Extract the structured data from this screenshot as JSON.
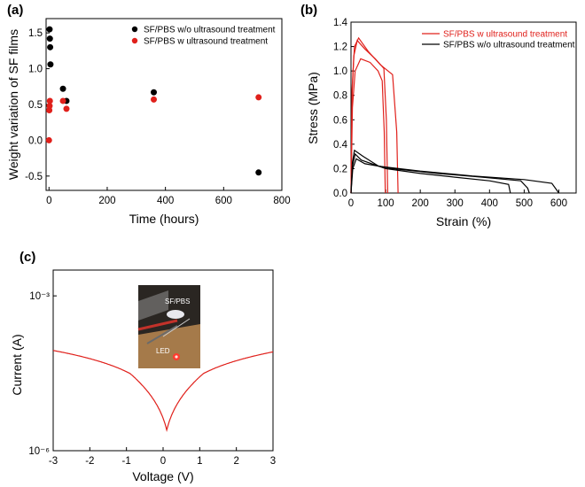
{
  "colors": {
    "red": "#e0201b",
    "black": "#000000",
    "inset_bg": "#2a2622",
    "inset_wood": "#a57a4a"
  },
  "chart_data": [
    {
      "id": "a",
      "panel_label": "(a)",
      "type": "scatter",
      "xlabel": "Time (hours)",
      "ylabel": "Weight variation of SF films",
      "xlim": [
        -10,
        800
      ],
      "ylim": [
        -0.7,
        1.7
      ],
      "xticks": [
        "0",
        "200",
        "400",
        "600",
        "800"
      ],
      "yticks": [
        "-0.5",
        "0.0",
        "0.5",
        "1.0",
        "1.5"
      ],
      "legend_position": "top-right",
      "series": [
        {
          "name": "SF/PBS w/o ultrasound treatment",
          "color": "#000000",
          "points": [
            [
              2,
              1.55
            ],
            [
              3,
              1.42
            ],
            [
              4,
              1.3
            ],
            [
              5,
              1.06
            ],
            [
              48,
              0.72
            ],
            [
              60,
              0.55
            ],
            [
              360,
              0.67
            ],
            [
              720,
              -0.45
            ]
          ]
        },
        {
          "name": "SF/PBS w ultrasound treatment",
          "color": "#e0201b",
          "points": [
            [
              0,
              0.0
            ],
            [
              1,
              0.42
            ],
            [
              2,
              0.48
            ],
            [
              3,
              0.55
            ],
            [
              48,
              0.55
            ],
            [
              60,
              0.44
            ],
            [
              360,
              0.57
            ],
            [
              720,
              0.6
            ]
          ]
        }
      ]
    },
    {
      "id": "b",
      "panel_label": "(b)",
      "type": "line",
      "xlabel": "Strain (%)",
      "ylabel": "Stress (MPa)",
      "xlim": [
        0,
        650
      ],
      "ylim": [
        0,
        1.4
      ],
      "xticks": [
        "0",
        "100",
        "200",
        "300",
        "400",
        "500",
        "600"
      ],
      "yticks": [
        "0.0",
        "0.2",
        "0.4",
        "0.6",
        "0.8",
        "1.0",
        "1.2",
        "1.4"
      ],
      "legend_position": "top-right",
      "legend": [
        {
          "name": "SF/PBS w ultrasound treatment",
          "color": "#e0201b"
        },
        {
          "name": "SF/PBS w/o ultrasound treatment",
          "color": "#000000"
        }
      ],
      "series": [
        {
          "name": "w ultrasound 1",
          "color": "#e0201b",
          "points": [
            [
              0,
              0
            ],
            [
              3,
              0.8
            ],
            [
              8,
              1.12
            ],
            [
              18,
              1.25
            ],
            [
              40,
              1.18
            ],
            [
              70,
              1.1
            ],
            [
              95,
              1.02
            ],
            [
              102,
              0.6
            ],
            [
              106,
              0
            ]
          ]
        },
        {
          "name": "w ultrasound 2",
          "color": "#e0201b",
          "points": [
            [
              0,
              0
            ],
            [
              3,
              0.85
            ],
            [
              10,
              1.2
            ],
            [
              22,
              1.27
            ],
            [
              50,
              1.16
            ],
            [
              85,
              1.05
            ],
            [
              120,
              0.97
            ],
            [
              132,
              0.5
            ],
            [
              136,
              0
            ]
          ]
        },
        {
          "name": "w ultrasound 3",
          "color": "#e0201b",
          "points": [
            [
              0,
              0
            ],
            [
              4,
              0.7
            ],
            [
              12,
              1.0
            ],
            [
              28,
              1.1
            ],
            [
              55,
              1.07
            ],
            [
              78,
              1.0
            ],
            [
              90,
              0.92
            ],
            [
              96,
              0.5
            ],
            [
              99,
              0
            ]
          ]
        },
        {
          "name": "w/o ultrasound 1",
          "color": "#000000",
          "points": [
            [
              0,
              0
            ],
            [
              4,
              0.22
            ],
            [
              12,
              0.32
            ],
            [
              30,
              0.27
            ],
            [
              100,
              0.2
            ],
            [
              200,
              0.16
            ],
            [
              300,
              0.13
            ],
            [
              400,
              0.1
            ],
            [
              455,
              0.07
            ],
            [
              460,
              0
            ]
          ]
        },
        {
          "name": "w/o ultrasound 2",
          "color": "#000000",
          "points": [
            [
              0,
              0
            ],
            [
              5,
              0.2
            ],
            [
              15,
              0.28
            ],
            [
              40,
              0.24
            ],
            [
              120,
              0.2
            ],
            [
              250,
              0.16
            ],
            [
              380,
              0.13
            ],
            [
              490,
              0.1
            ],
            [
              510,
              0.04
            ],
            [
              515,
              0
            ]
          ]
        },
        {
          "name": "w/o ultrasound 3",
          "color": "#000000",
          "points": [
            [
              0,
              0
            ],
            [
              4,
              0.25
            ],
            [
              10,
              0.35
            ],
            [
              35,
              0.3
            ],
            [
              80,
              0.22
            ],
            [
              200,
              0.18
            ],
            [
              350,
              0.14
            ],
            [
              500,
              0.11
            ],
            [
              580,
              0.08
            ],
            [
              600,
              0
            ]
          ]
        }
      ]
    },
    {
      "id": "c",
      "panel_label": "(c)",
      "type": "line",
      "xlabel": "Voltage (V)",
      "ylabel": "Current (A)",
      "xlim": [
        -3,
        3
      ],
      "y_scale": "log",
      "ylim_log10": [
        -6,
        -2.5
      ],
      "xticks": [
        "-3",
        "-2",
        "-1",
        "0",
        "1",
        "2",
        "3"
      ],
      "ytick_values_log10": [
        -6,
        -3
      ],
      "yticks": [
        "10⁻⁶",
        "10⁻³"
      ],
      "series": [
        {
          "name": "I-V curve",
          "color": "#e0201b",
          "min_voltage": 0.1,
          "min_current_log10": -5.6
        }
      ],
      "inset": {
        "label_top": "SF/PBS",
        "label_bottom": "LED"
      }
    }
  ]
}
